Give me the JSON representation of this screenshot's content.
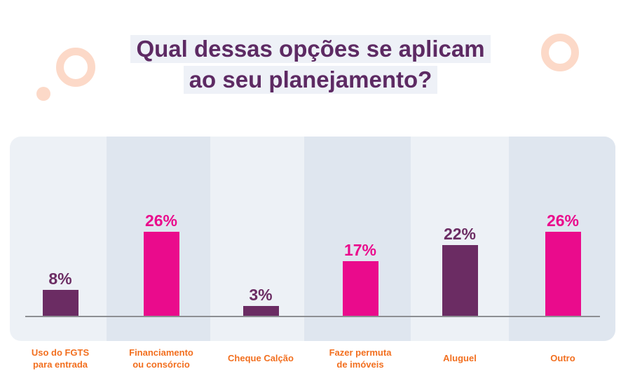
{
  "title": {
    "line1": "Qual dessas opções se aplicam",
    "line2": "ao seu planejamento?"
  },
  "colors": {
    "title": "#5d2a63",
    "purple": "#6b2c63",
    "pink": "#ea0b8c",
    "label_orange": "#f26f1f",
    "deco_peach": "#fcd9c8"
  },
  "chart_data": {
    "type": "bar",
    "title": "Qual dessas opções se aplicam ao seu planejamento?",
    "categories": [
      "Uso do FGTS\npara entrada",
      "Financiamento\nou consórcio",
      "Cheque Calção",
      "Fazer permuta\nde imóveis",
      "Aluguel",
      "Outro"
    ],
    "values": [
      8,
      26,
      3,
      17,
      22,
      26
    ],
    "value_labels": [
      "8%",
      "26%",
      "3%",
      "17%",
      "22%",
      "26%"
    ],
    "bar_colors": [
      "#6b2c63",
      "#ea0b8c",
      "#6b2c63",
      "#ea0b8c",
      "#6b2c63",
      "#ea0b8c"
    ],
    "ylim": [
      0,
      100
    ],
    "unit": "%"
  }
}
